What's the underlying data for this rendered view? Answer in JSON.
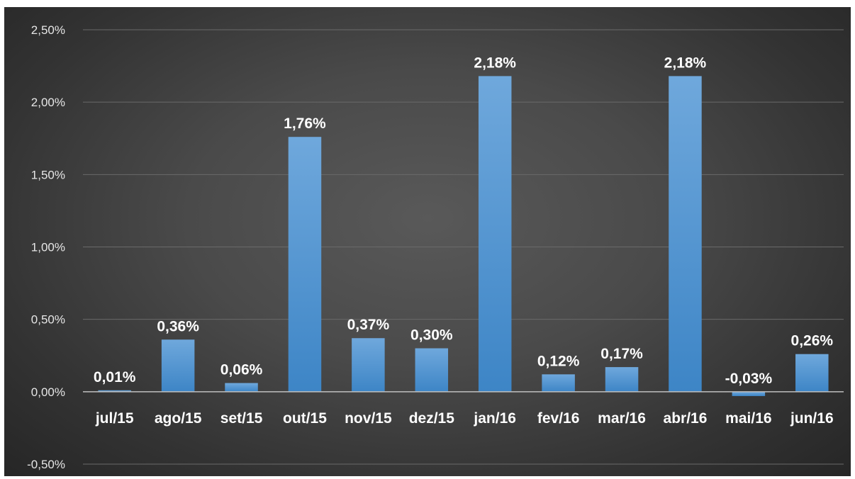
{
  "chart_data": {
    "type": "bar",
    "title": "",
    "xlabel": "",
    "ylabel": "",
    "categories": [
      "jul/15",
      "ago/15",
      "set/15",
      "out/15",
      "nov/15",
      "dez/15",
      "jan/16",
      "fev/16",
      "mar/16",
      "abr/16",
      "mai/16",
      "jun/16"
    ],
    "values": [
      0.01,
      0.36,
      0.06,
      1.76,
      0.37,
      0.3,
      2.18,
      0.12,
      0.17,
      2.18,
      -0.03,
      0.26
    ],
    "data_labels": [
      "0,01%",
      "0,36%",
      "0,06%",
      "1,76%",
      "0,37%",
      "0,30%",
      "2,18%",
      "0,12%",
      "0,17%",
      "2,18%",
      "-0,03%",
      "0,26%"
    ],
    "ylim": [
      -0.5,
      2.5
    ],
    "yticks": [
      -0.5,
      0.0,
      0.5,
      1.0,
      1.5,
      2.0,
      2.5
    ],
    "ytick_labels": [
      "-0,50%",
      "0,00%",
      "0,50%",
      "1,00%",
      "1,50%",
      "2,00%",
      "2,50%"
    ],
    "grid": true,
    "legend": "none",
    "colors": {
      "bar_top": "#6fa8dc",
      "bar_bottom": "#3d85c6",
      "gridline": "#6a6a6a",
      "zero_line": "#bfbfbf",
      "text": "#ffffff"
    }
  }
}
